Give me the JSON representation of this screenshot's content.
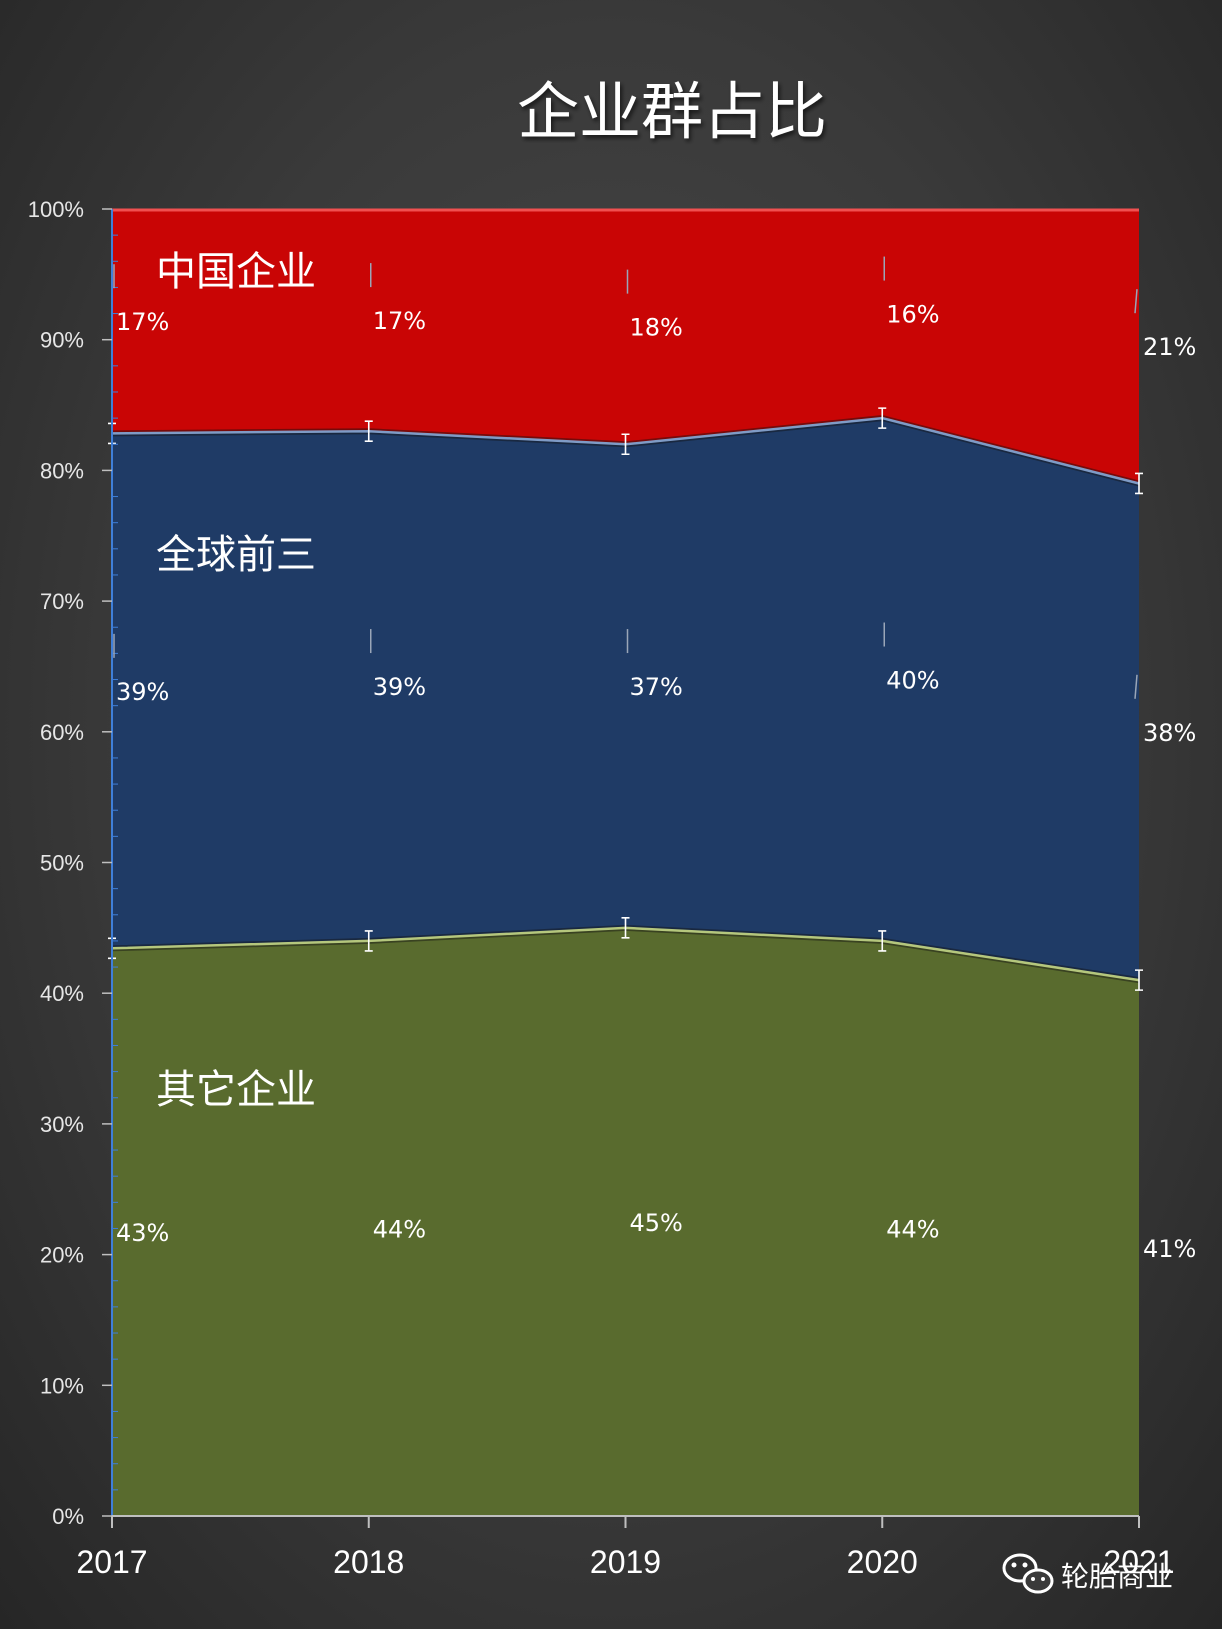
{
  "chart_data": {
    "type": "area",
    "stacked": true,
    "percent": true,
    "title": "企业群占比",
    "x": [
      "2017",
      "2018",
      "2019",
      "2020",
      "2021"
    ],
    "ylim": [
      0,
      100
    ],
    "yticks": [
      "0%",
      "10%",
      "20%",
      "30%",
      "40%",
      "50%",
      "60%",
      "70%",
      "80%",
      "90%",
      "100%"
    ],
    "series": [
      {
        "name": "其它企业",
        "values": [
          43,
          44,
          45,
          44,
          41
        ],
        "labels": [
          "43%",
          "44%",
          "45%",
          "44%",
          "41%"
        ],
        "color": "#596b2e"
      },
      {
        "name": "全球前三",
        "values": [
          39,
          39,
          37,
          40,
          38
        ],
        "labels": [
          "39%",
          "39%",
          "37%",
          "40%",
          "38%"
        ],
        "color": "#1f3b66"
      },
      {
        "name": "中国企业",
        "values": [
          17,
          17,
          18,
          16,
          21
        ],
        "labels": [
          "17%",
          "17%",
          "18%",
          "16%",
          "21%"
        ],
        "color": "#c90505"
      }
    ],
    "legend": "inline",
    "grid": false
  },
  "watermark": {
    "text": "轮胎商业",
    "icon": "wechat-icon"
  }
}
